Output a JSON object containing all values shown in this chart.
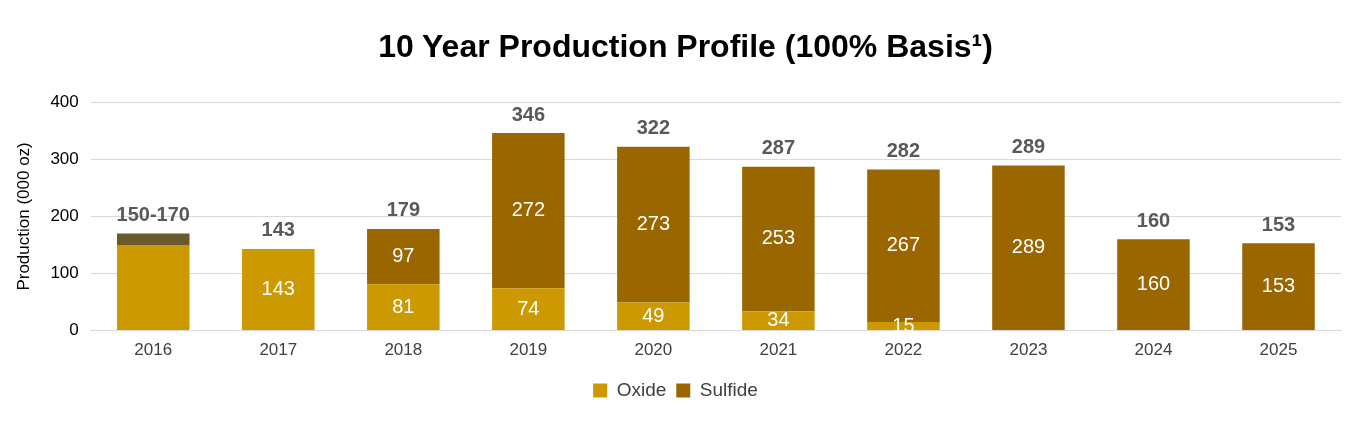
{
  "chart_data": {
    "type": "bar",
    "title": "10 Year Production Profile (100% Basis¹)",
    "ylabel": "Production (000 oz)",
    "categories": [
      "2016",
      "2017",
      "2018",
      "2019",
      "2020",
      "2021",
      "2022",
      "2023",
      "2024",
      "2025"
    ],
    "stacked": true,
    "series": [
      {
        "name": "Oxide",
        "color": "#cc9900",
        "values": [
          150,
          143,
          81,
          74,
          49,
          34,
          15,
          null,
          null,
          null
        ],
        "value_labels": [
          null,
          "143",
          "81",
          "74",
          "49",
          "34",
          "15",
          null,
          null,
          null
        ]
      },
      {
        "name": "Sulfide",
        "color": "#996600",
        "values": [
          null,
          null,
          97,
          272,
          273,
          253,
          267,
          289,
          160,
          153
        ],
        "value_labels": [
          null,
          null,
          "97",
          "272",
          "273",
          "253",
          "267",
          "289",
          "160",
          "153"
        ]
      },
      {
        "color": "#6b5a2e",
        "values": [
          20,
          null,
          null,
          null,
          null,
          null,
          null,
          null,
          null,
          null
        ]
      }
    ],
    "totals": [
      "150-170",
      "143",
      "179",
      "346",
      "322",
      "287",
      "282",
      "289",
      "160",
      "153"
    ],
    "ylim": [
      0,
      400
    ],
    "yticks": [
      0,
      100,
      200,
      300,
      400
    ],
    "grid": "y",
    "legend": "bottom"
  }
}
